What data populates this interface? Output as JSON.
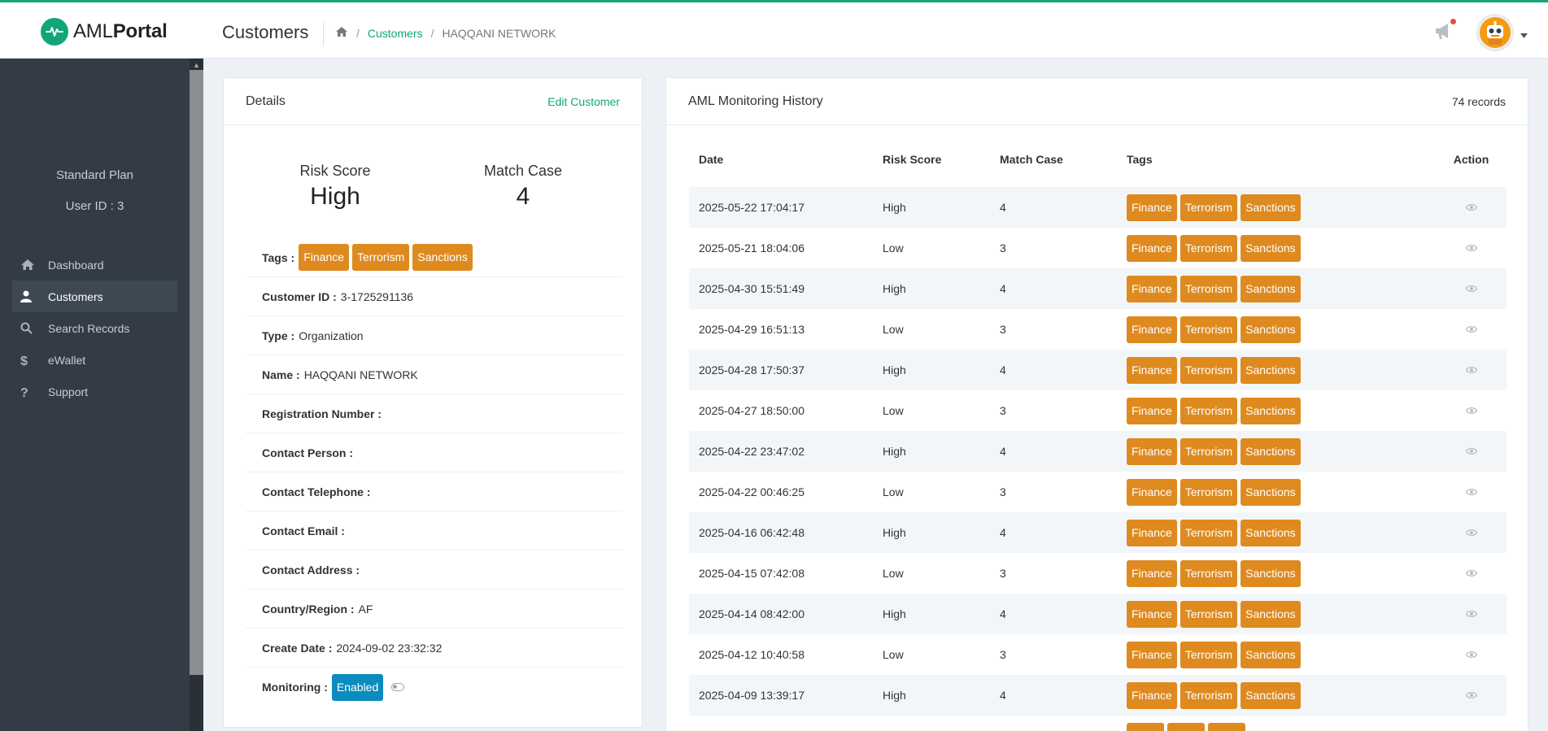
{
  "app": {
    "logo_text_light": "AML",
    "logo_text_bold": "Portal",
    "brand_color": "#12a57a",
    "accent_tag_color": "#de8a1f",
    "enabled_color": "#0b8cbf"
  },
  "header": {
    "title": "Customers",
    "breadcrumb": {
      "home_icon": "home-icon",
      "customers": "Customers",
      "separator": "/",
      "current": "HAQQANI NETWORK"
    },
    "notification_icon": "megaphone-icon",
    "avatar_icon": "robot-avatar"
  },
  "sidebar": {
    "plan": "Standard Plan",
    "user_id": "User ID : 3",
    "items": [
      {
        "label": "Dashboard",
        "icon": "home-icon",
        "active": false
      },
      {
        "label": "Customers",
        "icon": "user-icon",
        "active": true
      },
      {
        "label": "Search Records",
        "icon": "search-icon",
        "active": false
      },
      {
        "label": "eWallet",
        "icon": "dollar-icon",
        "active": false
      },
      {
        "label": "Support",
        "icon": "question-icon",
        "active": false
      }
    ]
  },
  "details": {
    "title": "Details",
    "edit_link": "Edit Customer",
    "risk_score_label": "Risk Score",
    "risk_score_value": "High",
    "match_case_label": "Match Case",
    "match_case_value": "4",
    "tags_label": "Tags :",
    "tags": [
      "Finance",
      "Terrorism",
      "Sanctions"
    ],
    "fields": [
      {
        "label": "Customer ID :",
        "value": "3-1725291136"
      },
      {
        "label": "Type :",
        "value": "Organization"
      },
      {
        "label": "Name :",
        "value": "HAQQANI NETWORK"
      },
      {
        "label": "Registration Number :",
        "value": ""
      },
      {
        "label": "Contact Person :",
        "value": ""
      },
      {
        "label": "Contact Telephone :",
        "value": ""
      },
      {
        "label": "Contact Email :",
        "value": ""
      },
      {
        "label": "Contact Address :",
        "value": ""
      },
      {
        "label": "Country/Region :",
        "value": "AF"
      },
      {
        "label": "Create Date :",
        "value": "2024-09-02 23:32:32"
      }
    ],
    "monitoring_label": "Monitoring :",
    "monitoring_status": "Enabled"
  },
  "history": {
    "title": "AML Monitoring History",
    "records": "74 records",
    "columns": [
      "Date",
      "Risk Score",
      "Match Case",
      "Tags",
      "Action"
    ],
    "row_tags": [
      "Finance",
      "Terrorism",
      "Sanctions"
    ],
    "action_icon": "eye-icon",
    "rows": [
      {
        "date": "2025-05-22 17:04:17",
        "risk": "High",
        "match": "4"
      },
      {
        "date": "2025-05-21 18:04:06",
        "risk": "Low",
        "match": "3"
      },
      {
        "date": "2025-04-30 15:51:49",
        "risk": "High",
        "match": "4"
      },
      {
        "date": "2025-04-29 16:51:13",
        "risk": "Low",
        "match": "3"
      },
      {
        "date": "2025-04-28 17:50:37",
        "risk": "High",
        "match": "4"
      },
      {
        "date": "2025-04-27 18:50:00",
        "risk": "Low",
        "match": "3"
      },
      {
        "date": "2025-04-22 23:47:02",
        "risk": "High",
        "match": "4"
      },
      {
        "date": "2025-04-22 00:46:25",
        "risk": "Low",
        "match": "3"
      },
      {
        "date": "2025-04-16 06:42:48",
        "risk": "High",
        "match": "4"
      },
      {
        "date": "2025-04-15 07:42:08",
        "risk": "Low",
        "match": "3"
      },
      {
        "date": "2025-04-14 08:42:00",
        "risk": "High",
        "match": "4"
      },
      {
        "date": "2025-04-12 10:40:58",
        "risk": "Low",
        "match": "3"
      },
      {
        "date": "2025-04-09 13:39:17",
        "risk": "High",
        "match": "4"
      },
      {
        "date": "",
        "risk": "",
        "match": ""
      }
    ]
  }
}
